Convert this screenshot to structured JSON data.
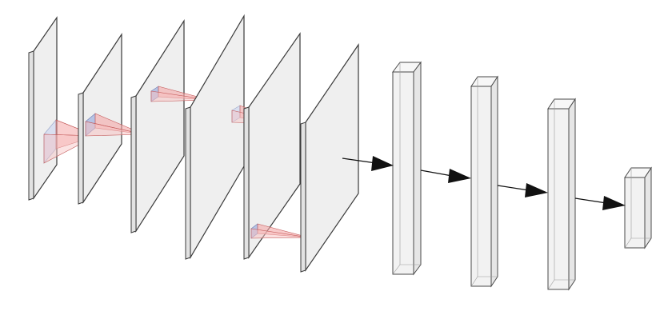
{
  "diagram": {
    "kind": "neural-network-architecture",
    "colors": {
      "background": "#ffffff",
      "plane_fill": "#efefef",
      "plane_edge": "#3a3a3a",
      "box_fill": "#f2f2f2",
      "box_edge": "#4a4a4a",
      "cone_fill": "#f29a9a",
      "cone_edge": "#c45a5a",
      "arrow": "#111111"
    },
    "feature_maps": [
      {
        "name": "feature-map-1"
      },
      {
        "name": "feature-map-2"
      },
      {
        "name": "feature-map-3"
      },
      {
        "name": "feature-map-4"
      },
      {
        "name": "feature-map-5"
      },
      {
        "name": "feature-map-6"
      }
    ],
    "dense_layers": [
      {
        "name": "dense-layer-1"
      },
      {
        "name": "dense-layer-2"
      },
      {
        "name": "dense-layer-3"
      },
      {
        "name": "output-layer"
      }
    ],
    "connections": [
      {
        "from": "feature-map-6",
        "to": "dense-layer-1"
      },
      {
        "from": "dense-layer-1",
        "to": "dense-layer-2"
      },
      {
        "from": "dense-layer-2",
        "to": "dense-layer-3"
      },
      {
        "from": "dense-layer-3",
        "to": "output-layer"
      }
    ]
  }
}
